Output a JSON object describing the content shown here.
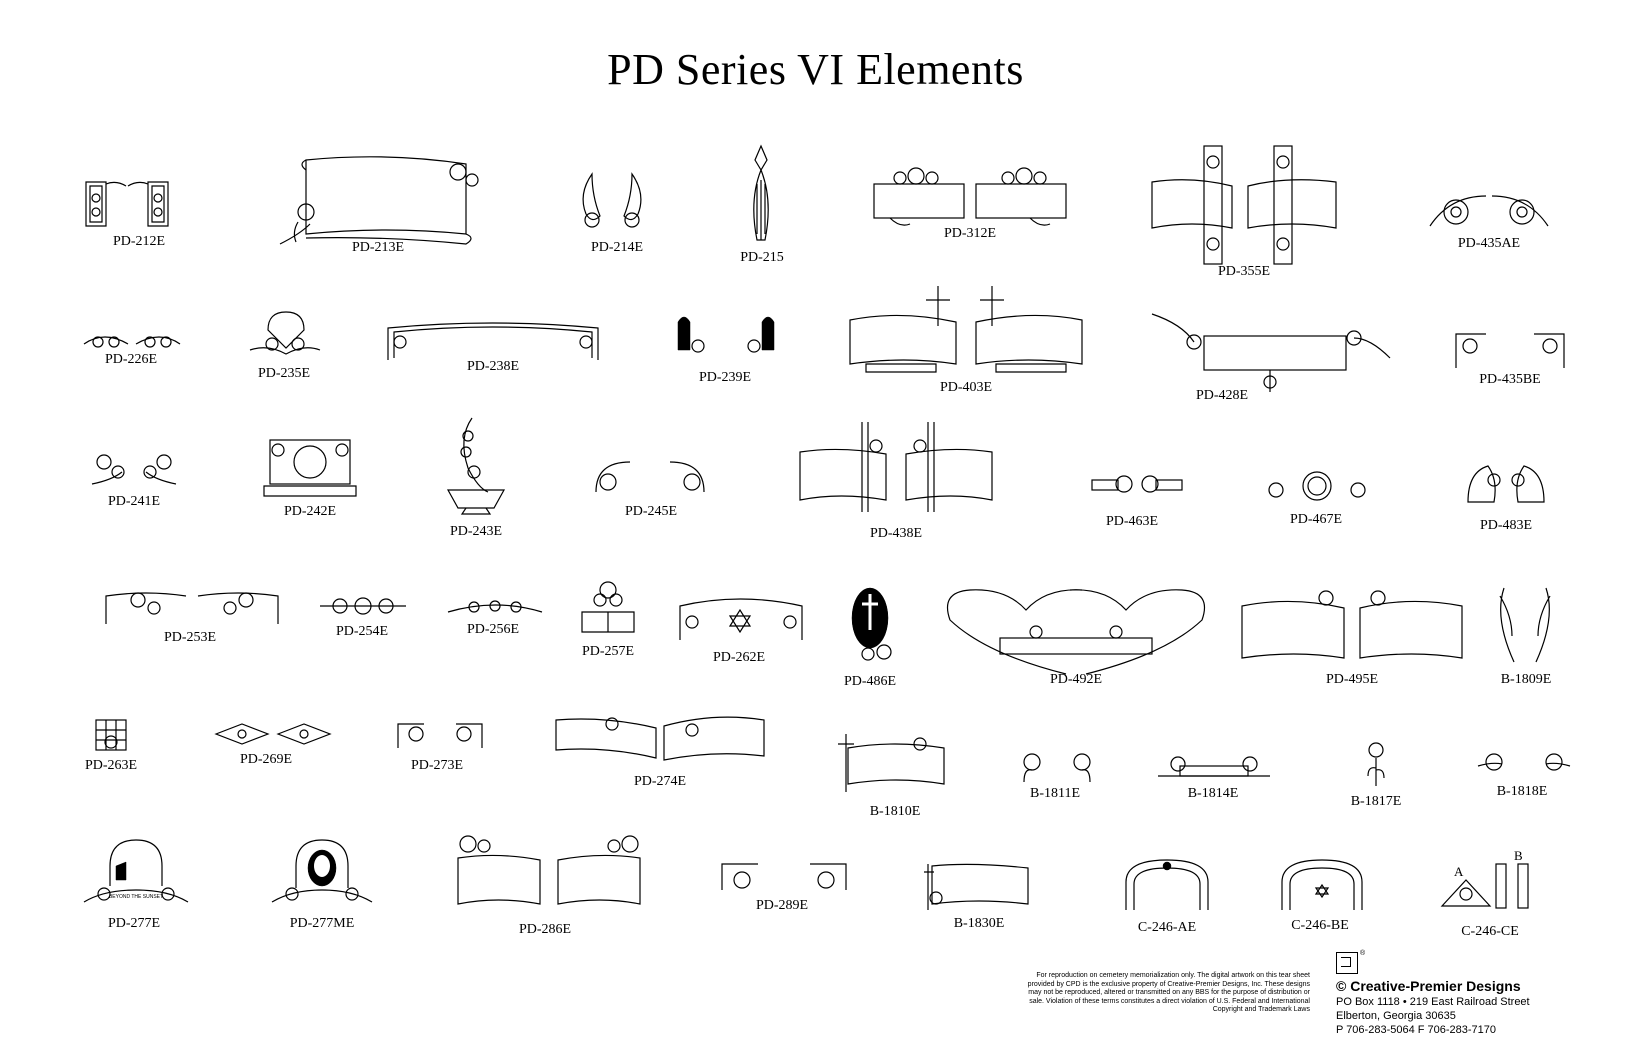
{
  "title": "PD Series VI Elements",
  "elements": {
    "pd212e": "PD-212E",
    "pd213e": "PD-213E",
    "pd214e": "PD-214E",
    "pd215": "PD-215",
    "pd312e": "PD-312E",
    "pd355e": "PD-355E",
    "pd435ae": "PD-435AE",
    "pd226e": "PD-226E",
    "pd235e": "PD-235E",
    "pd238e": "PD-238E",
    "pd239e": "PD-239E",
    "pd403e": "PD-403E",
    "pd428e": "PD-428E",
    "pd435be": "PD-435BE",
    "pd241e": "PD-241E",
    "pd242e": "PD-242E",
    "pd243e": "PD-243E",
    "pd245e": "PD-245E",
    "pd438e": "PD-438E",
    "pd463e": "PD-463E",
    "pd467e": "PD-467E",
    "pd483e": "PD-483E",
    "pd253e": "PD-253E",
    "pd254e": "PD-254E",
    "pd256e": "PD-256E",
    "pd257e": "PD-257E",
    "pd262e": "PD-262E",
    "pd486e": "PD-486E",
    "pd492e": "PD-492E",
    "pd495e": "PD-495E",
    "b1809e": "B-1809E",
    "pd263e": "PD-263E",
    "pd269e": "PD-269E",
    "pd273e": "PD-273E",
    "pd274e": "PD-274E",
    "b1810e": "B-1810E",
    "b1811e": "B-1811E",
    "b1814e": "B-1814E",
    "b1817e": "B-1817E",
    "b1818e": "B-1818E",
    "pd277e": "PD-277E",
    "pd277me": "PD-277ME",
    "pd286e": "PD-286E",
    "pd289e": "PD-289E",
    "b1830e": "B-1830E",
    "c246ae": "C-246-AE",
    "c246be": "C-246-BE",
    "c246ce": "C-246-CE"
  },
  "c246ce_marks": {
    "a": "A",
    "b": "B"
  },
  "pd277e_banner": "BEYOND THE SUNSET",
  "footer": {
    "notice": "For reproduction on cemetery memorialization only. The digital artwork on this tear sheet provided by CPD is the exclusive property of Creative-Premier Designs, Inc. These designs may not be reproduced, altered or transmitted on any BBS for the purpose of distribution or sale. Violation of these terms constitutes a direct violation of U.S. Federal and International Copyright and Trademark Laws",
    "company": "© Creative-Premier Designs",
    "address1": "PO Box 1118 • 219 East Railroad Street",
    "address2": "Elberton, Georgia 30635",
    "phones": "P 706-283-5064  F 706-283-7170",
    "registered": "®"
  }
}
